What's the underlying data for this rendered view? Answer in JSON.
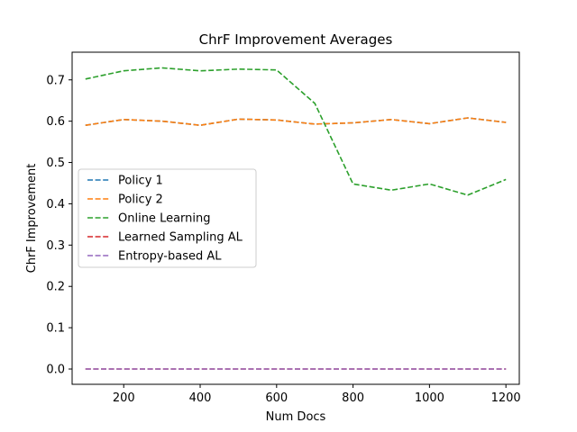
{
  "chart_data": {
    "type": "line",
    "title": "ChrF Improvement Averages",
    "xlabel": "Num Docs",
    "ylabel": "ChrF Improvement",
    "xlim": [
      65,
      1235
    ],
    "ylim": [
      -0.037,
      0.767
    ],
    "xticks": [
      200,
      400,
      600,
      800,
      1000,
      1200
    ],
    "yticks": [
      0.0,
      0.1,
      0.2,
      0.3,
      0.4,
      0.5,
      0.6,
      0.7
    ],
    "xtick_labels": [
      "200",
      "400",
      "600",
      "800",
      "1000",
      "1200"
    ],
    "ytick_labels": [
      "0.0",
      "0.1",
      "0.2",
      "0.3",
      "0.4",
      "0.5",
      "0.6",
      "0.7"
    ],
    "grid": false,
    "legend_position": "center-left",
    "x": [
      100,
      200,
      300,
      400,
      500,
      600,
      700,
      800,
      900,
      1000,
      1100,
      1200
    ],
    "series": [
      {
        "name": "Policy 1",
        "color": "#1f77b4",
        "values": [
          0.59,
          0.604,
          0.6,
          0.59,
          0.605,
          0.603,
          0.593,
          0.596,
          0.604,
          0.594,
          0.608,
          0.597
        ]
      },
      {
        "name": "Policy 2",
        "color": "#ff7f0e",
        "values": [
          0.59,
          0.604,
          0.6,
          0.59,
          0.605,
          0.603,
          0.593,
          0.596,
          0.604,
          0.594,
          0.608,
          0.597
        ]
      },
      {
        "name": "Online Learning",
        "color": "#2ca02c",
        "values": [
          0.702,
          0.722,
          0.729,
          0.722,
          0.726,
          0.724,
          0.643,
          0.448,
          0.433,
          0.448,
          0.421,
          0.459
        ]
      },
      {
        "name": "Learned Sampling AL",
        "color": "#d62728",
        "values": [
          0.0,
          0.0,
          0.0,
          0.0,
          0.0,
          0.0,
          0.0,
          0.0,
          0.0,
          0.0,
          0.0,
          0.0
        ]
      },
      {
        "name": "Entropy-based AL",
        "color": "#9467bd",
        "values": [
          0.0,
          0.0,
          0.0,
          0.0,
          0.0,
          0.0,
          0.0,
          0.0,
          0.0,
          0.0,
          0.0,
          0.0
        ]
      }
    ]
  }
}
